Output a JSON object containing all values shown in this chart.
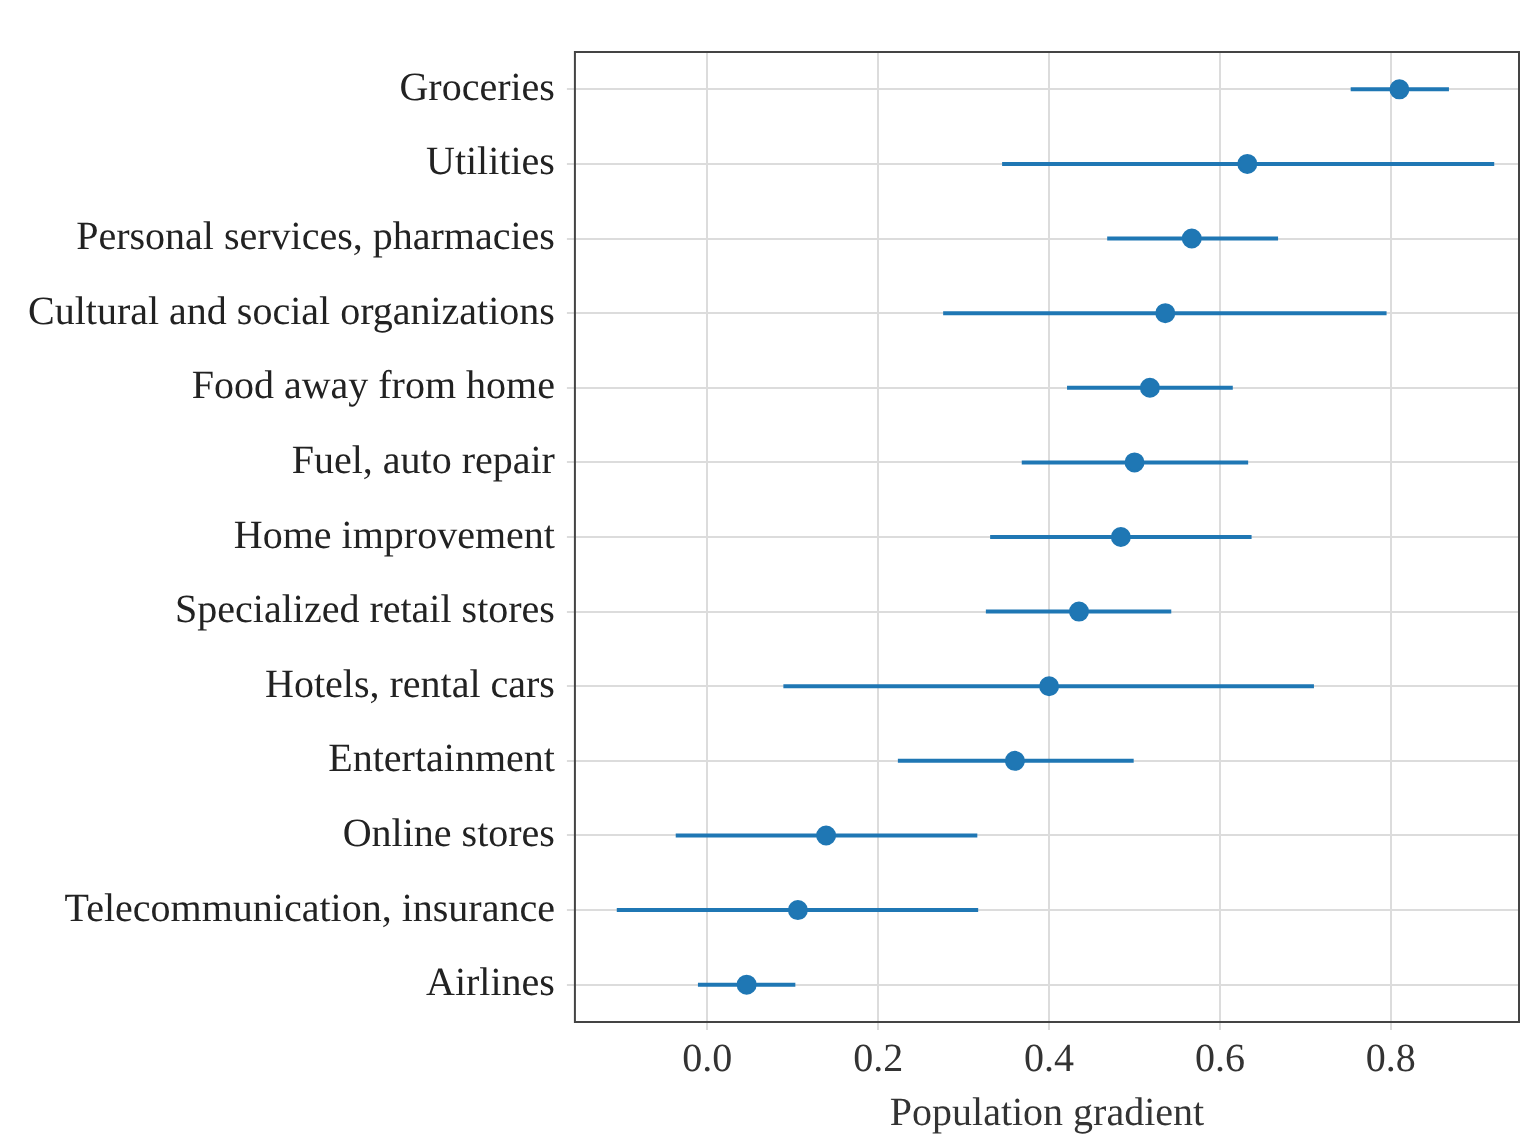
{
  "chart_data": {
    "type": "scatter",
    "orientation": "horizontal",
    "xlabel": "Population gradient",
    "categories": [
      "Groceries",
      "Utilities",
      "Personal services, pharmacies",
      "Cultural and social organizations",
      "Food away from home",
      "Fuel, auto repair",
      "Home improvement",
      "Specialized retail stores",
      "Hotels, rental cars",
      "Entertainment",
      "Online stores",
      "Telecommunication, insurance",
      "Airlines"
    ],
    "values": [
      0.81,
      0.632,
      0.567,
      0.536,
      0.518,
      0.5,
      0.484,
      0.435,
      0.4,
      0.36,
      0.139,
      0.106,
      0.046
    ],
    "errors": [
      [
        0.753,
        0.868
      ],
      [
        0.345,
        0.921
      ],
      [
        0.468,
        0.668
      ],
      [
        0.276,
        0.795
      ],
      [
        0.421,
        0.615
      ],
      [
        0.368,
        0.633
      ],
      [
        0.331,
        0.637
      ],
      [
        0.326,
        0.543
      ],
      [
        0.089,
        0.71
      ],
      [
        0.223,
        0.499
      ],
      [
        -0.037,
        0.316
      ],
      [
        -0.106,
        0.317
      ],
      [
        -0.011,
        0.103
      ]
    ],
    "color": "#1f77b4",
    "xlim": [
      -0.155,
      0.95
    ],
    "xticks": [
      {
        "value": 0,
        "label": "0.0"
      },
      0.2,
      0.4,
      0.6,
      0.8
    ],
    "grid": true,
    "marker": "circle",
    "legend": false
  }
}
